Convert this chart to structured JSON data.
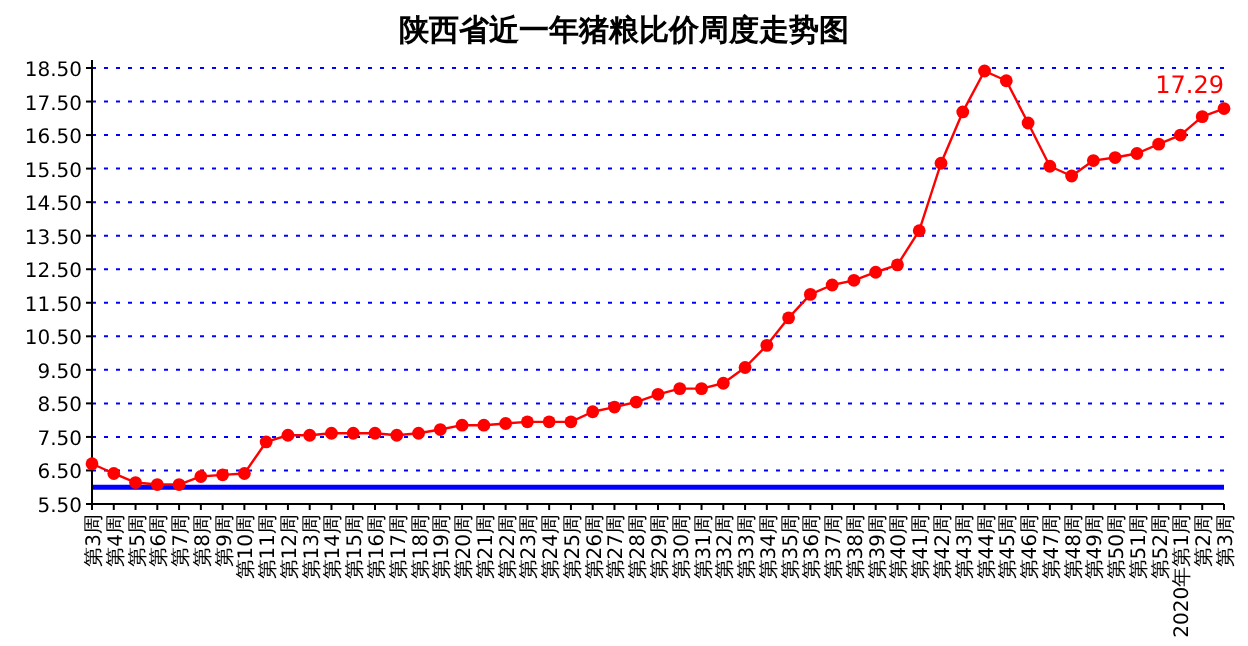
{
  "chart_data": {
    "type": "line",
    "title": "陕西省近一年猪粮比价周度走势图",
    "categories": [
      "第3周",
      "第4周",
      "第5周",
      "第6周",
      "第7周",
      "第8周",
      "第9周",
      "第10周",
      "第11周",
      "第12周",
      "第13周",
      "第14周",
      "第15周",
      "第16周",
      "第17周",
      "第18周",
      "第19周",
      "第20周",
      "第21周",
      "第22周",
      "第23周",
      "第24周",
      "第25周",
      "第26周",
      "第27周",
      "第28周",
      "第29周",
      "第30周",
      "第31周",
      "第32周",
      "第33周",
      "第34周",
      "第35周",
      "第36周",
      "第37周",
      "第38周",
      "第39周",
      "第40周",
      "第41周",
      "第42周",
      "第43周",
      "第44周",
      "第45周",
      "第46周",
      "第47周",
      "第48周",
      "第49周",
      "第50周",
      "第51周",
      "第52周",
      "2020年第1周",
      "第2周",
      "第3周"
    ],
    "series": [
      {
        "color": "#ff0000",
        "values": [
          6.7,
          6.41,
          6.14,
          6.08,
          6.08,
          6.32,
          6.37,
          6.41,
          7.35,
          7.55,
          7.55,
          7.61,
          7.61,
          7.61,
          7.55,
          7.61,
          7.72,
          7.85,
          7.85,
          7.9,
          7.95,
          7.95,
          7.95,
          8.25,
          8.39,
          8.54,
          8.77,
          8.94,
          8.94,
          9.1,
          9.57,
          10.23,
          11.05,
          11.75,
          12.03,
          12.17,
          12.41,
          12.63,
          13.65,
          15.66,
          17.19,
          18.41,
          18.12,
          16.86,
          15.57,
          15.28,
          15.74,
          15.83,
          15.95,
          16.23,
          16.5,
          17.05,
          17.29
        ],
        "value_labels": [
          null,
          null,
          null,
          null,
          null,
          null,
          null,
          null,
          null,
          null,
          null,
          null,
          null,
          null,
          null,
          null,
          null,
          null,
          null,
          null,
          null,
          null,
          null,
          null,
          null,
          null,
          null,
          null,
          null,
          null,
          null,
          null,
          null,
          null,
          null,
          null,
          null,
          null,
          null,
          null,
          null,
          null,
          null,
          null,
          null,
          null,
          null,
          null,
          null,
          null,
          null,
          null,
          "17.29"
        ]
      }
    ],
    "ylim": [
      5.5,
      18.5
    ],
    "yticks": [
      {
        "value": 5.5,
        "label": "5.50"
      },
      {
        "value": 6.5,
        "label": "6.50"
      },
      {
        "value": 7.5,
        "label": "7.50"
      },
      {
        "value": 8.5,
        "label": "8.50"
      },
      {
        "value": 9.5,
        "label": "9.50"
      },
      {
        "value": 10.5,
        "label": "10.50"
      },
      {
        "value": 11.5,
        "label": "11.50"
      },
      {
        "value": 12.5,
        "label": "12.50"
      },
      {
        "value": 13.5,
        "label": "13.50"
      },
      {
        "value": 14.5,
        "label": "14.50"
      },
      {
        "value": 15.5,
        "label": "15.50"
      },
      {
        "value": 16.5,
        "label": "16.50"
      },
      {
        "value": 17.5,
        "label": "17.50"
      },
      {
        "value": 18.5,
        "label": "18.50"
      }
    ],
    "grid": "y",
    "marker": "circle",
    "line_style": "solid",
    "ref_lines": [
      {
        "axis": "y",
        "value": 6,
        "color": "#0000ff",
        "line_style": "solid"
      }
    ]
  }
}
